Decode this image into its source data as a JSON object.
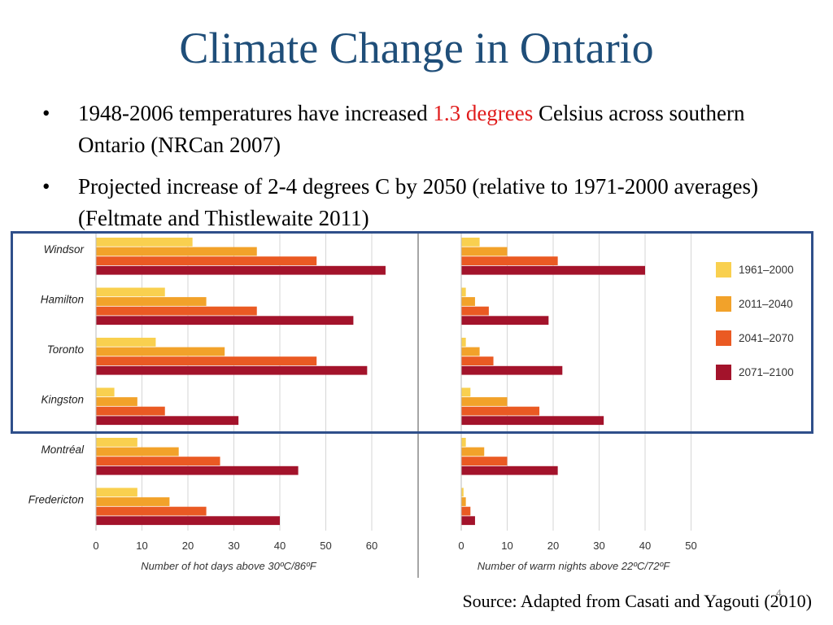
{
  "slide": {
    "title": "Climate Change in Ontario",
    "bullet1": {
      "before": "1948-2006 temperatures have increased ",
      "highlight": "1.3 degrees",
      "after": " Celsius across southern Ontario (NRCan 2007)"
    },
    "bullet2": "Projected increase of 2-4 degrees C by 2050 (relative to 1971-2000 averages) (Feltmate and Thistlewaite 2011)",
    "source": "Source: Adapted from Casati and Yagouti (2010)",
    "page_number": "4"
  },
  "colors": {
    "title": "#1f4e79",
    "highlight_text": "#e01b1b",
    "box": "#2f4f8a"
  },
  "chart_data": {
    "type": "bar",
    "orientation": "horizontal",
    "categories": [
      "Windsor",
      "Hamilton",
      "Toronto",
      "Kingston",
      "Montréal",
      "Fredericton"
    ],
    "series": [
      {
        "name": "1961–2000",
        "color": "#f9d04f"
      },
      {
        "name": "2011–2040",
        "color": "#f2a22a"
      },
      {
        "name": "2041–2070",
        "color": "#ea5a23"
      },
      {
        "name": "2071–2100",
        "color": "#a3132b"
      }
    ],
    "panels": [
      {
        "xlabel": "Number of hot days above 30ºC/86ºF",
        "xlim": [
          0,
          70
        ],
        "xticks": [
          0,
          10,
          20,
          30,
          40,
          50,
          60
        ],
        "values": [
          [
            21,
            35,
            48,
            63
          ],
          [
            15,
            24,
            35,
            56
          ],
          [
            13,
            28,
            48,
            59
          ],
          [
            4,
            9,
            15,
            31
          ],
          [
            9,
            18,
            27,
            44
          ],
          [
            9,
            16,
            24,
            40
          ]
        ]
      },
      {
        "xlabel": "Number of warm nights above 22ºC/72ºF",
        "xlim": [
          0,
          50
        ],
        "xticks": [
          0,
          10,
          20,
          30,
          40,
          50
        ],
        "values": [
          [
            4,
            10,
            21,
            40
          ],
          [
            1,
            3,
            6,
            19
          ],
          [
            1,
            4,
            7,
            22
          ],
          [
            2,
            10,
            17,
            31
          ],
          [
            1,
            5,
            10,
            21
          ],
          [
            0.5,
            1,
            2,
            3
          ]
        ]
      }
    ],
    "legend_position": "right",
    "grid": true
  }
}
